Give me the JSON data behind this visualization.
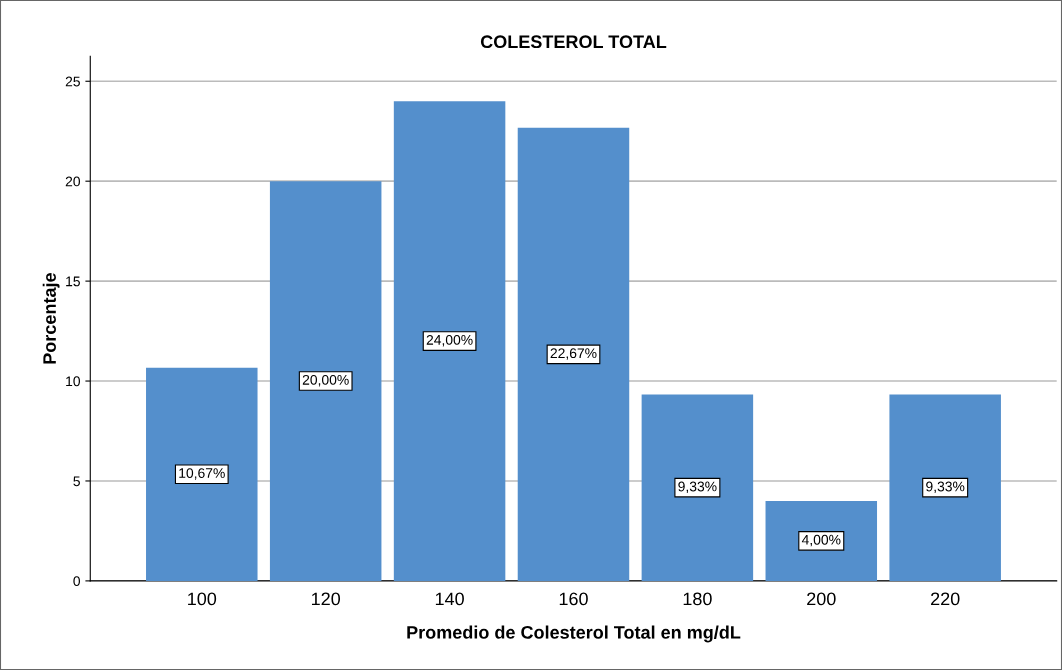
{
  "chart_data": {
    "type": "bar",
    "title": "COLESTEROL TOTAL",
    "xlabel": "Promedio de Colesterol Total en mg/dL",
    "ylabel": "Porcentaje",
    "categories": [
      "100",
      "120",
      "140",
      "160",
      "180",
      "200",
      "220"
    ],
    "values": [
      10.67,
      20,
      24,
      22.67,
      9.33,
      4,
      9.33
    ],
    "value_labels": [
      "10,67%",
      "20,00%",
      "24,00%",
      "22,67%",
      "9,33%",
      "4,00%",
      "9,33%"
    ],
    "color": "#548fcc",
    "ylim": [
      0,
      26.25
    ],
    "yticks": [
      0,
      5,
      10,
      15,
      20,
      25
    ],
    "grid": "y",
    "legend": false
  }
}
